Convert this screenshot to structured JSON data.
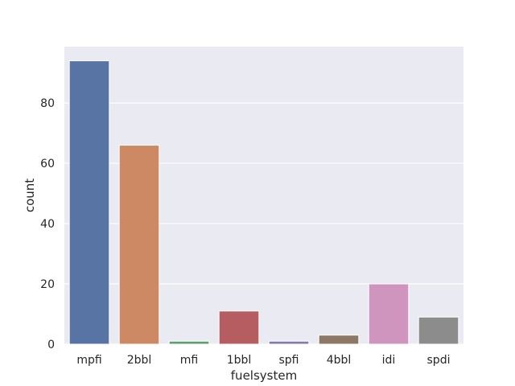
{
  "chart_data": {
    "type": "bar",
    "categories": [
      "mpfi",
      "2bbl",
      "mfi",
      "1bbl",
      "spfi",
      "4bbl",
      "idi",
      "spdi"
    ],
    "values": [
      94,
      66,
      1,
      11,
      1,
      3,
      20,
      9
    ],
    "colors": [
      "#5874a5",
      "#cc8963",
      "#5f9e6e",
      "#b55d60",
      "#857aab",
      "#8d7866",
      "#d095bf",
      "#8c8c8c"
    ],
    "xlabel": "fuelsystem",
    "ylabel": "count",
    "ylim": [
      0,
      98.7
    ],
    "yticks": [
      0,
      20,
      40,
      60,
      80
    ],
    "grid": true,
    "background": "#eaeaf2"
  }
}
